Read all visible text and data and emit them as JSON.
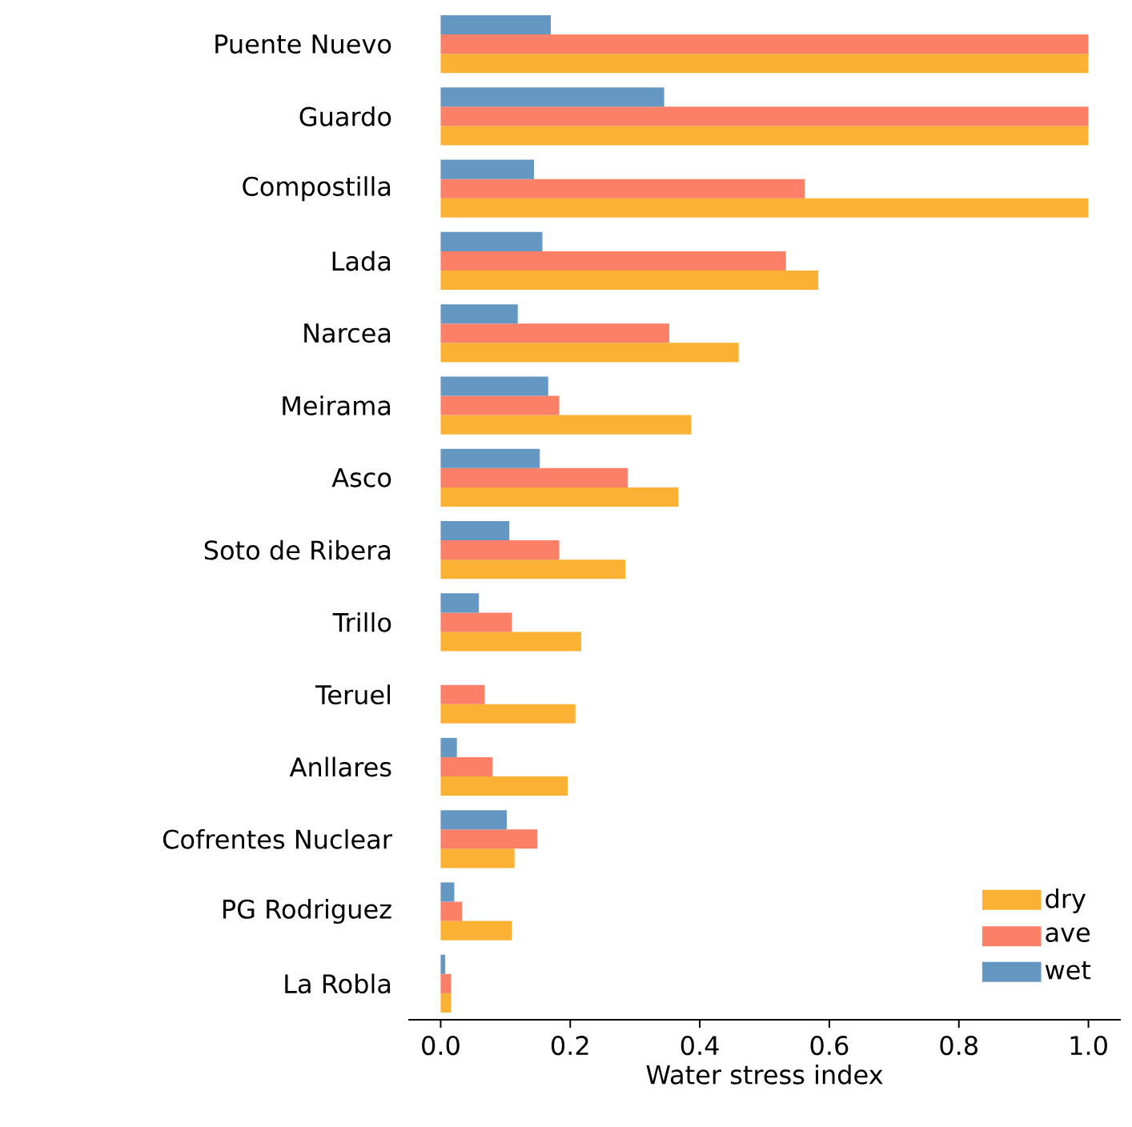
{
  "chart_data": {
    "type": "bar",
    "orientation": "horizontal",
    "xlabel": "Water stress index",
    "categories": [
      "Puente Nuevo",
      "Guardo",
      "Compostilla",
      "Lada",
      "Narcea",
      "Meirama",
      "Asco",
      "Soto de Ribera",
      "Trillo",
      "Teruel",
      "Anllares",
      "Cofrentes Nuclear",
      "PG Rodriguez",
      "La Robla"
    ],
    "series": [
      {
        "name": "dry",
        "color": "#fbb133",
        "values": [
          1.0,
          1.0,
          1.0,
          0.583,
          0.46,
          0.387,
          0.367,
          0.285,
          0.217,
          0.208,
          0.196,
          0.114,
          0.11,
          0.016
        ]
      },
      {
        "name": "ave",
        "color": "#fc7f68",
        "values": [
          1.0,
          1.0,
          0.562,
          0.533,
          0.353,
          0.183,
          0.289,
          0.183,
          0.11,
          0.068,
          0.08,
          0.149,
          0.033,
          0.016
        ]
      },
      {
        "name": "wet",
        "color": "#6497c2",
        "values": [
          0.17,
          0.345,
          0.144,
          0.157,
          0.119,
          0.166,
          0.153,
          0.106,
          0.059,
          null,
          0.025,
          0.102,
          0.021,
          0.007
        ]
      }
    ],
    "xlim": [
      -0.05,
      1.05
    ],
    "xticks": [
      {
        "value": 0,
        "label": "0.0"
      },
      0.2,
      0.4,
      0.6,
      0.8,
      {
        "value": 1,
        "label": "1.0"
      }
    ],
    "legend": "bottom right"
  }
}
